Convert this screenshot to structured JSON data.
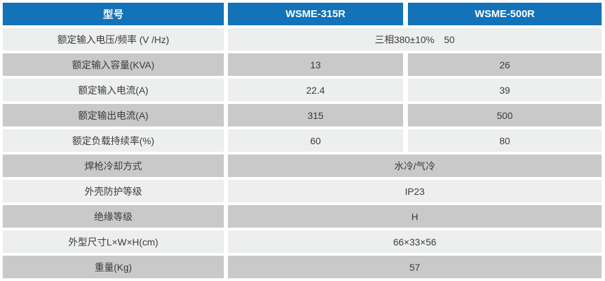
{
  "colors": {
    "header_bg": "#1372b8",
    "header_text": "#ffffff",
    "row_light": "#edeeee",
    "row_dark": "#c9c9c9",
    "cell_text": "#3b3b3b",
    "gap_bg": "#ffffff"
  },
  "table": {
    "header": {
      "col1": "型号",
      "col2": "WSME-315R",
      "col3": "WSME-500R"
    },
    "rows": [
      {
        "label": "额定输入电压/频率 (V /Hz)",
        "span": "三相380±10%　50"
      },
      {
        "label": "额定输入容量(KVA)",
        "v1": "13",
        "v2": "26"
      },
      {
        "label": "额定输入电流(A)",
        "v1": "22.4",
        "v2": "39"
      },
      {
        "label": "额定输出电流(A)",
        "v1": "315",
        "v2": "500"
      },
      {
        "label": "额定负载持续率(%)",
        "v1": "60",
        "v2": "80"
      },
      {
        "label": "焊枪冷却方式",
        "span": "水冷/气冷"
      },
      {
        "label": "外壳防护等级",
        "span": "IP23"
      },
      {
        "label": "绝缘等级",
        "span": "H"
      },
      {
        "label": "外型尺寸L×W×H(cm)",
        "span": "66×33×56"
      },
      {
        "label": "重量(Kg)",
        "span": "57"
      }
    ]
  }
}
